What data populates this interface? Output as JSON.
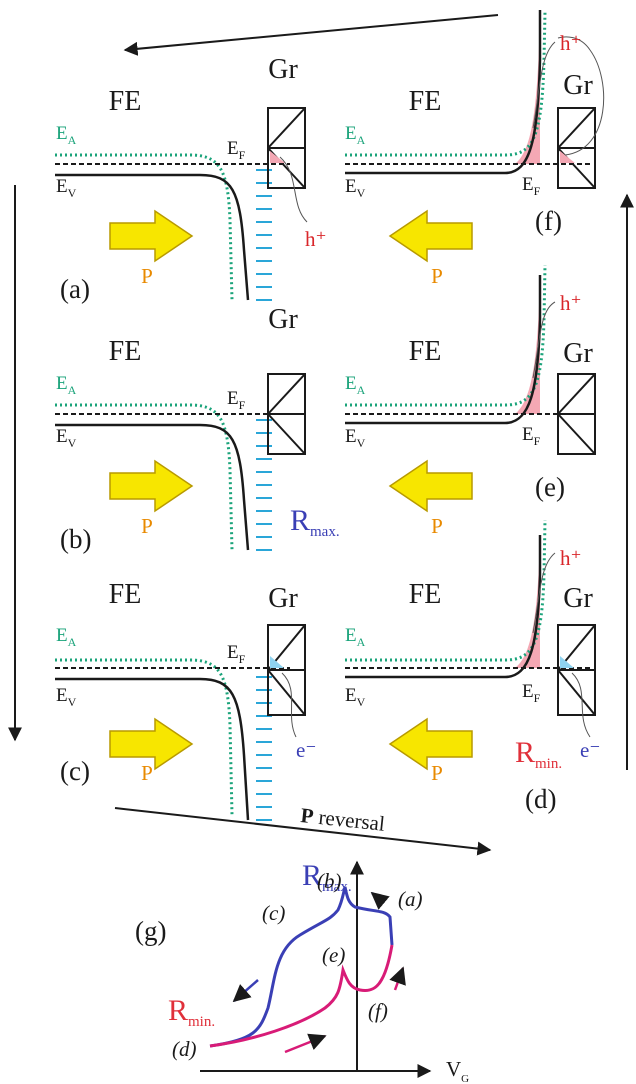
{
  "labels": {
    "fe": "FE",
    "gr": "Gr",
    "ea_main": "E",
    "ea_sub": "A",
    "ev_main": "E",
    "ev_sub": "V",
    "ef_main": "E",
    "ef_sub": "F",
    "h_plus": "h⁺",
    "e_minus": "e⁻",
    "p": "P",
    "r_main": "R",
    "r_max_sub": "max.",
    "r_min_sub": "min.",
    "reversal_bold": "P",
    "reversal_text": " reversal",
    "vg_main": "V",
    "vg_sub": "G"
  },
  "panels": [
    {
      "id": "a",
      "label": "(a)"
    },
    {
      "id": "b",
      "label": "(b)"
    },
    {
      "id": "c",
      "label": "(c)"
    },
    {
      "id": "d",
      "label": "(d)"
    },
    {
      "id": "e",
      "label": "(e)"
    },
    {
      "id": "f",
      "label": "(f)"
    }
  ],
  "graph": {
    "label": "(g)",
    "points": [
      "(a)",
      "(b)",
      "(c)",
      "(d)",
      "(e)",
      "(f)"
    ]
  },
  "colors": {
    "ea_line": "#1aa37a",
    "band": "#1a1a1a",
    "depletion": "#2aa6d8",
    "arrow_fill": "#f7e600",
    "arrow_stroke": "#b89a00",
    "p_text": "#e88a00",
    "h_text": "#d9262a",
    "e_text": "#3a3fb5",
    "hole_fill": "#f4a8b4",
    "electron_fill": "#8fd3f0",
    "r_max": "#3a3fb5",
    "r_min": "#e0303a",
    "curve_blue": "#3a3fb5",
    "curve_pink": "#d81b77"
  }
}
